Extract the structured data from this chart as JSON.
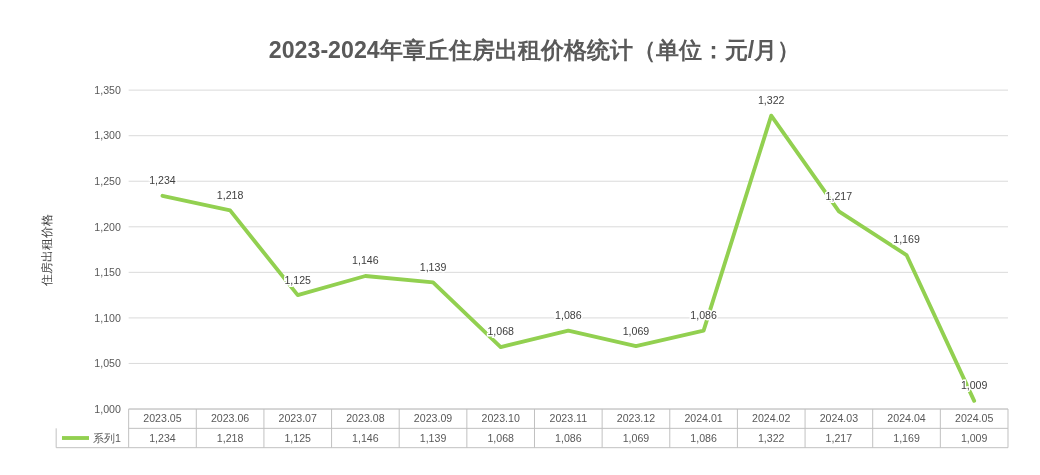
{
  "chart_data": {
    "type": "line",
    "title": "2023-2024年章丘住房出租价格统计（单位：元/月）",
    "ylabel": "住房出租价格",
    "categories": [
      "2023.05",
      "2023.06",
      "2023.07",
      "2023.08",
      "2023.09",
      "2023.10",
      "2023.11",
      "2023.12",
      "2024.01",
      "2024.02",
      "2024.03",
      "2024.04",
      "2024.05"
    ],
    "series": [
      {
        "name": "系列1",
        "color": "#92d050",
        "values": [
          1234,
          1218,
          1125,
          1146,
          1139,
          1068,
          1086,
          1069,
          1086,
          1322,
          1217,
          1169,
          1009
        ],
        "value_labels": [
          "1,234",
          "1,218",
          "1,125",
          "1,146",
          "1,139",
          "1,068",
          "1,086",
          "1,069",
          "1,086",
          "1,322",
          "1,217",
          "1,169",
          "1,009"
        ]
      }
    ],
    "ylim": [
      1000,
      1350
    ],
    "yticks": [
      {
        "value": 1000,
        "label": "1,000"
      },
      {
        "value": 1050,
        "label": "1,050"
      },
      {
        "value": 1100,
        "label": "1,100"
      },
      {
        "value": 1150,
        "label": "1,150"
      },
      {
        "value": 1200,
        "label": "1,200"
      },
      {
        "value": 1250,
        "label": "1,250"
      },
      {
        "value": 1300,
        "label": "1,300"
      },
      {
        "value": 1350,
        "label": "1,350"
      }
    ],
    "grid": "y",
    "legend": "bottom",
    "marker": "none",
    "line_style": "solid"
  }
}
